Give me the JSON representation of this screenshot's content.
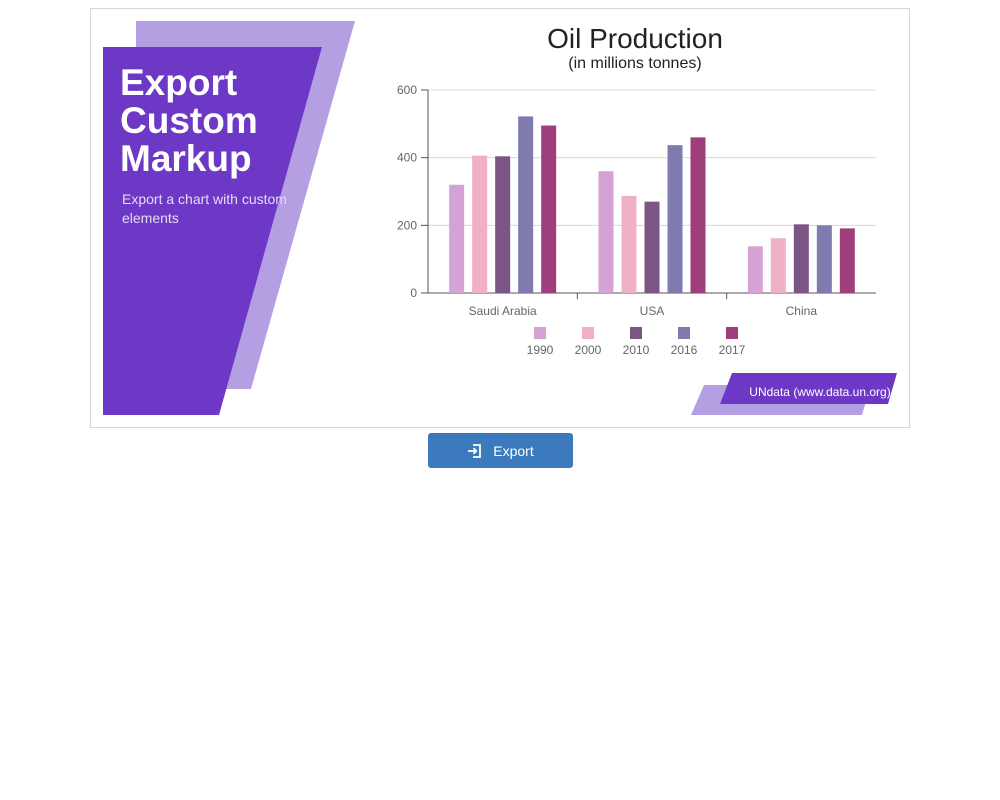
{
  "promo": {
    "title": "Export Custom Markup",
    "subtitle": "Export a chart with custom elements"
  },
  "colors": {
    "purple_dark": "#6e38c7",
    "purple_light": "#b59fe3",
    "series": [
      "#d4a2d4",
      "#f0b0c8",
      "#7b5583",
      "#7f7bae",
      "#9e3e7a"
    ]
  },
  "source_label": "UNdata (www.data.un.org)",
  "export_button": {
    "label": "Export",
    "icon": "export-icon"
  },
  "chart_data": {
    "type": "bar",
    "title": "Oil Production",
    "subtitle": "(in millions tonnes)",
    "xlabel": "",
    "ylabel": "",
    "ylim": [
      0,
      600
    ],
    "yticks": [
      0,
      200,
      400,
      600
    ],
    "grid": true,
    "legend": "bottom-center",
    "categories": [
      "Saudi Arabia",
      "USA",
      "China"
    ],
    "series": [
      {
        "name": "1990",
        "values": [
          320,
          360,
          138
        ]
      },
      {
        "name": "2000",
        "values": [
          406,
          287,
          162
        ]
      },
      {
        "name": "2010",
        "values": [
          404,
          270,
          203
        ]
      },
      {
        "name": "2016",
        "values": [
          522,
          437,
          200
        ]
      },
      {
        "name": "2017",
        "values": [
          495,
          460,
          191
        ]
      }
    ]
  }
}
